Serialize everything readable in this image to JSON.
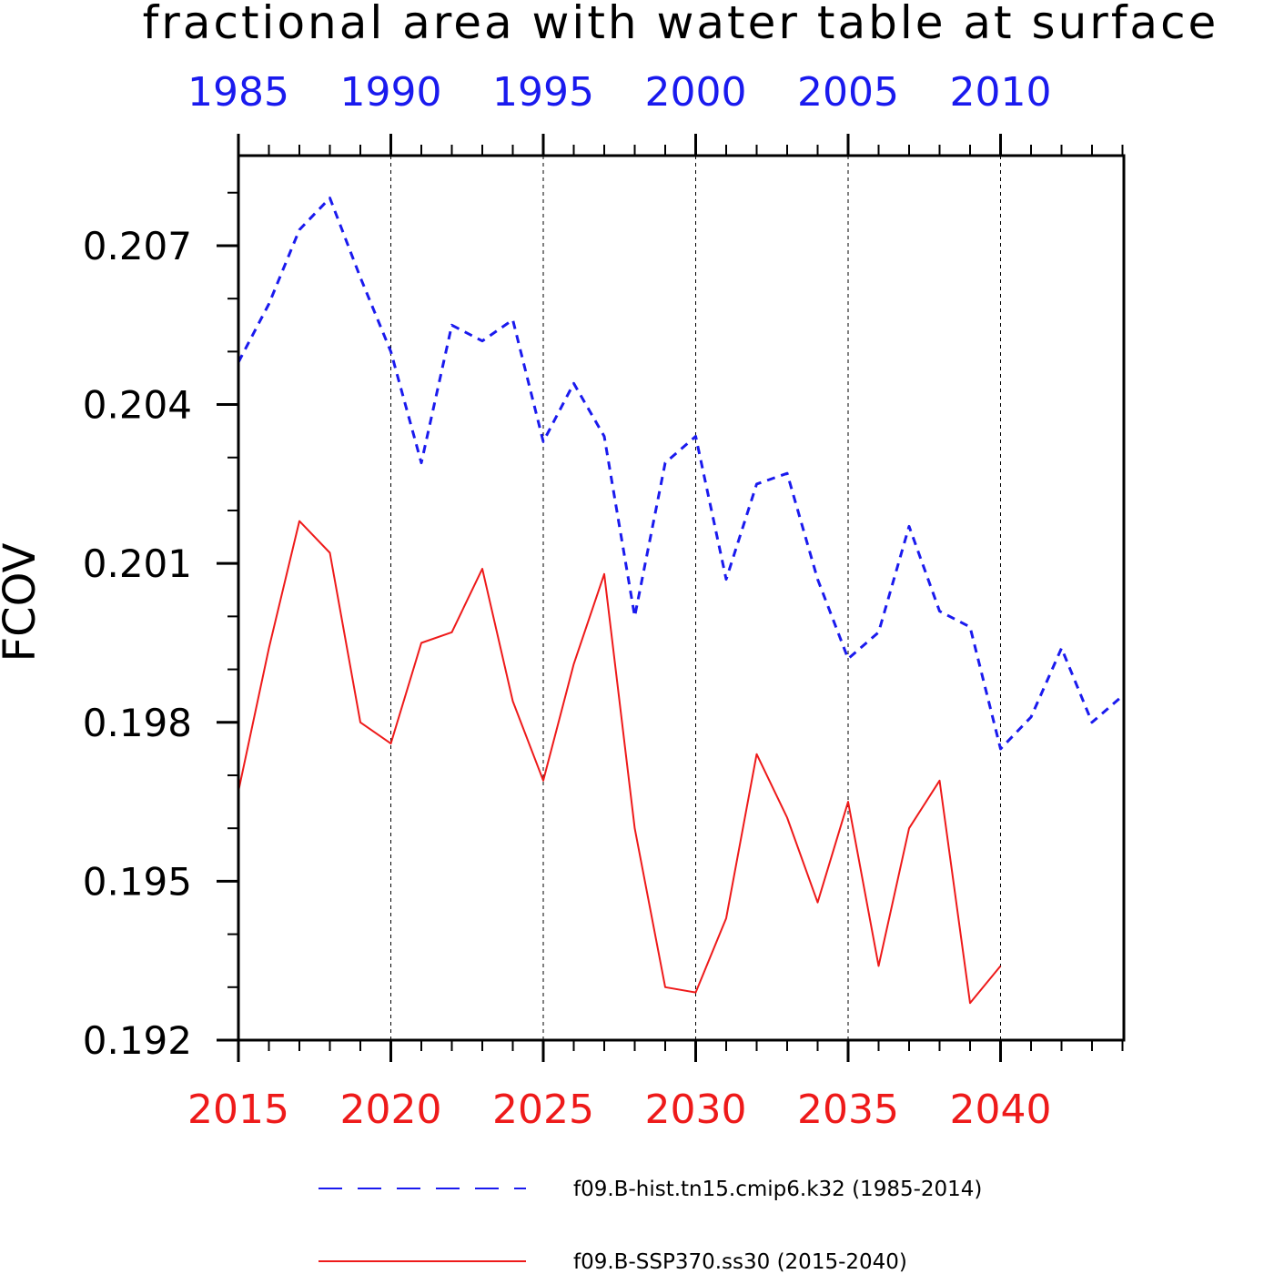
{
  "chart_data": {
    "type": "line",
    "title": "fractional area with water table at surface",
    "ylabel": "FCOV",
    "ylim": [
      0.192,
      0.2087
    ],
    "yticks": [
      "0.192",
      "0.195",
      "0.198",
      "0.201",
      "0.204",
      "0.207"
    ],
    "grid": "vertical dashed at major x ticks",
    "legend_position": "bottom",
    "top_axis": {
      "range": [
        1985,
        2014
      ],
      "ticks": [
        "1985",
        "1990",
        "1995",
        "2000",
        "2005",
        "2010"
      ],
      "color": "#1a1aee"
    },
    "bottom_axis": {
      "range": [
        2015,
        2044
      ],
      "ticks": [
        "2015",
        "2020",
        "2025",
        "2030",
        "2035",
        "2040"
      ],
      "color": "#ee1a1a"
    },
    "series": [
      {
        "name": "f09.B-hist.tn15.cmip6.k32 (1985-2014)",
        "axis": "top",
        "style": "dashed",
        "color": "#1a1aee",
        "x": [
          1985,
          1986,
          1987,
          1988,
          1989,
          1990,
          1991,
          1992,
          1993,
          1994,
          1995,
          1996,
          1997,
          1998,
          1999,
          2000,
          2001,
          2002,
          2003,
          2004,
          2005,
          2006,
          2007,
          2008,
          2009,
          2010,
          2011,
          2012,
          2013,
          2014
        ],
        "values": [
          0.2048,
          0.2059,
          0.2073,
          0.2079,
          0.2064,
          0.205,
          0.2029,
          0.2055,
          0.2052,
          0.2056,
          0.2033,
          0.2044,
          0.2034,
          0.2,
          0.2029,
          0.2034,
          0.2007,
          0.2025,
          0.2027,
          0.2007,
          0.1992,
          0.1997,
          0.2017,
          0.2001,
          0.1998,
          0.1975,
          0.1981,
          0.1994,
          0.198,
          0.1985
        ]
      },
      {
        "name": "f09.B-SSP370.ss30 (2015-2040)",
        "axis": "bottom",
        "style": "solid",
        "color": "#ee1a1a",
        "x": [
          2015,
          2016,
          2017,
          2018,
          2019,
          2020,
          2021,
          2022,
          2023,
          2024,
          2025,
          2026,
          2027,
          2028,
          2029,
          2030,
          2031,
          2032,
          2033,
          2034,
          2035,
          2036,
          2037,
          2038,
          2039,
          2040
        ],
        "values": [
          0.1967,
          0.1994,
          0.2018,
          0.2012,
          0.198,
          0.1976,
          0.1995,
          0.1997,
          0.2009,
          0.1984,
          0.1969,
          0.1991,
          0.2008,
          0.196,
          0.193,
          0.1929,
          0.1943,
          0.1974,
          0.1962,
          0.1946,
          0.1965,
          0.1934,
          0.196,
          0.1969,
          0.1927,
          0.1934
        ]
      }
    ]
  },
  "colors": {
    "axis": "#000000",
    "grid": "#000000"
  }
}
